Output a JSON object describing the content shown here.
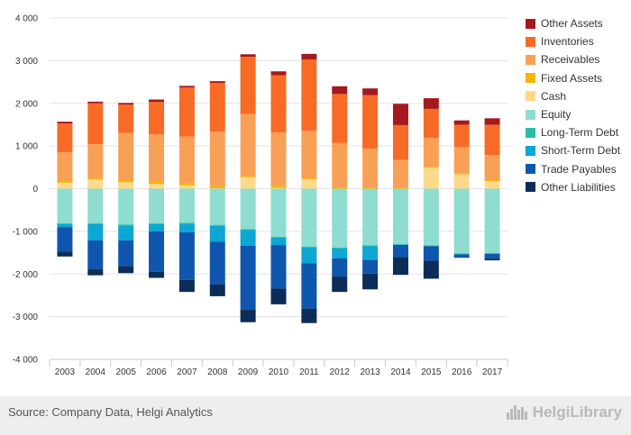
{
  "chart_data": {
    "type": "bar",
    "stacked": true,
    "categories": [
      "2003",
      "2004",
      "2005",
      "2006",
      "2007",
      "2008",
      "2009",
      "2010",
      "2011",
      "2012",
      "2013",
      "2014",
      "2015",
      "2016",
      "2017"
    ],
    "ylim": [
      -4000,
      4000
    ],
    "yticks": [
      4000,
      3000,
      2000,
      1000,
      0,
      -1000,
      -2000,
      -3000,
      -4000
    ],
    "ytick_labels": [
      "4 000",
      "3 000",
      "2 000",
      "1 000",
      "0",
      "-1 000",
      "-2 000",
      "-3 000",
      "-4 000"
    ],
    "grid": true,
    "legend_position": "right",
    "series": [
      {
        "name": "Other Assets",
        "color": "#a5191e",
        "side": "positive",
        "values": [
          40,
          40,
          40,
          60,
          40,
          40,
          60,
          90,
          130,
          180,
          160,
          500,
          250,
          100,
          150
        ]
      },
      {
        "name": "Inventories",
        "color": "#f76b26",
        "side": "positive",
        "values": [
          680,
          960,
          660,
          760,
          1150,
          1140,
          1340,
          1340,
          1670,
          1150,
          1250,
          820,
          680,
          520,
          710
        ]
      },
      {
        "name": "Receivables",
        "color": "#f9a057",
        "side": "positive",
        "values": [
          660,
          800,
          1110,
          1110,
          1100,
          1280,
          1450,
          1250,
          1120,
          1040,
          910,
          650,
          680,
          620,
          590
        ]
      },
      {
        "name": "Fixed Assets",
        "color": "#f5b400",
        "side": "positive",
        "values": [
          50,
          30,
          50,
          50,
          40,
          50,
          30,
          50,
          20,
          30,
          30,
          20,
          20,
          20,
          20
        ]
      },
      {
        "name": "Cash",
        "color": "#fdd98c",
        "side": "positive",
        "values": [
          140,
          210,
          150,
          110,
          80,
          10,
          270,
          20,
          220,
          0,
          0,
          0,
          490,
          340,
          180
        ]
      },
      {
        "name": "Equity",
        "color": "#8fdcd0",
        "side": "negative",
        "values": [
          -810,
          -810,
          -840,
          -810,
          -800,
          -850,
          -950,
          -1130,
          -1360,
          -1380,
          -1330,
          -1300,
          -1330,
          -1520,
          -1510
        ]
      },
      {
        "name": "Long-Term Debt",
        "color": "#2bbba8",
        "side": "negative",
        "values": [
          -20,
          -20,
          -20,
          -20,
          -20,
          -20,
          -20,
          -20,
          -20,
          -20,
          -20,
          -20,
          -20,
          -20,
          -20
        ]
      },
      {
        "name": "Short-Term Debt",
        "color": "#0ca7d3",
        "side": "negative",
        "values": [
          -70,
          -380,
          -350,
          -170,
          -200,
          -370,
          -370,
          -170,
          -370,
          -230,
          -320,
          0,
          0,
          0,
          0
        ]
      },
      {
        "name": "Trade Payables",
        "color": "#0f56ae",
        "side": "negative",
        "values": [
          -570,
          -680,
          -600,
          -950,
          -1120,
          -1000,
          -1500,
          -1020,
          -1060,
          -430,
          -320,
          -280,
          -340,
          -80,
          -110
        ]
      },
      {
        "name": "Other Liabilities",
        "color": "#0b2d58",
        "side": "negative",
        "values": [
          -120,
          -140,
          -170,
          -140,
          -280,
          -280,
          -290,
          -370,
          -340,
          -360,
          -370,
          -420,
          -420,
          0,
          -40
        ]
      }
    ]
  },
  "footer": {
    "source": "Source: Company Data, Helgi Analytics",
    "brand": "HelgiLibrary"
  }
}
